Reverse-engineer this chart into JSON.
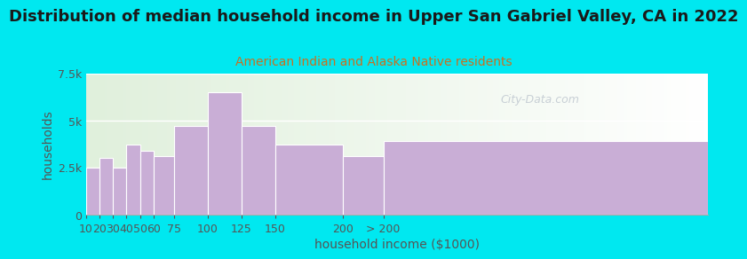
{
  "title": "Distribution of median household income in Upper San Gabriel Valley, CA in 2022",
  "subtitle": "American Indian and Alaska Native residents",
  "xlabel": "household income ($1000)",
  "ylabel": "households",
  "bar_color": "#c9aed6",
  "bar_edge_color": "#b090c0",
  "background_outer": "#00e8f0",
  "watermark": "City-Data.com",
  "bin_edges": [
    10,
    20,
    30,
    40,
    50,
    60,
    75,
    100,
    125,
    150,
    200,
    230,
    470
  ],
  "values": [
    2500,
    3000,
    2500,
    3700,
    3400,
    3100,
    4700,
    6500,
    4700,
    3700,
    3100,
    3900
  ],
  "xtick_positions": [
    10,
    20,
    30,
    40,
    50,
    60,
    75,
    100,
    125,
    150,
    200,
    230,
    470
  ],
  "xtick_labels": [
    "10",
    "20",
    "30",
    "40",
    "50",
    "60",
    "75",
    "100",
    "125",
    "150",
    "200",
    "> 200",
    ""
  ],
  "ylim": [
    0,
    7500
  ],
  "xlim": [
    10,
    470
  ],
  "yticks": [
    0,
    2500,
    5000,
    7500
  ],
  "ytick_labels": [
    "0",
    "2.5k",
    "5k",
    "7.5k"
  ],
  "title_fontsize": 13,
  "subtitle_fontsize": 10,
  "axis_label_fontsize": 10,
  "tick_fontsize": 9,
  "title_color": "#1a1a1a",
  "subtitle_color": "#c87020",
  "tick_color": "#555555",
  "watermark_color": "#c0c8d0"
}
